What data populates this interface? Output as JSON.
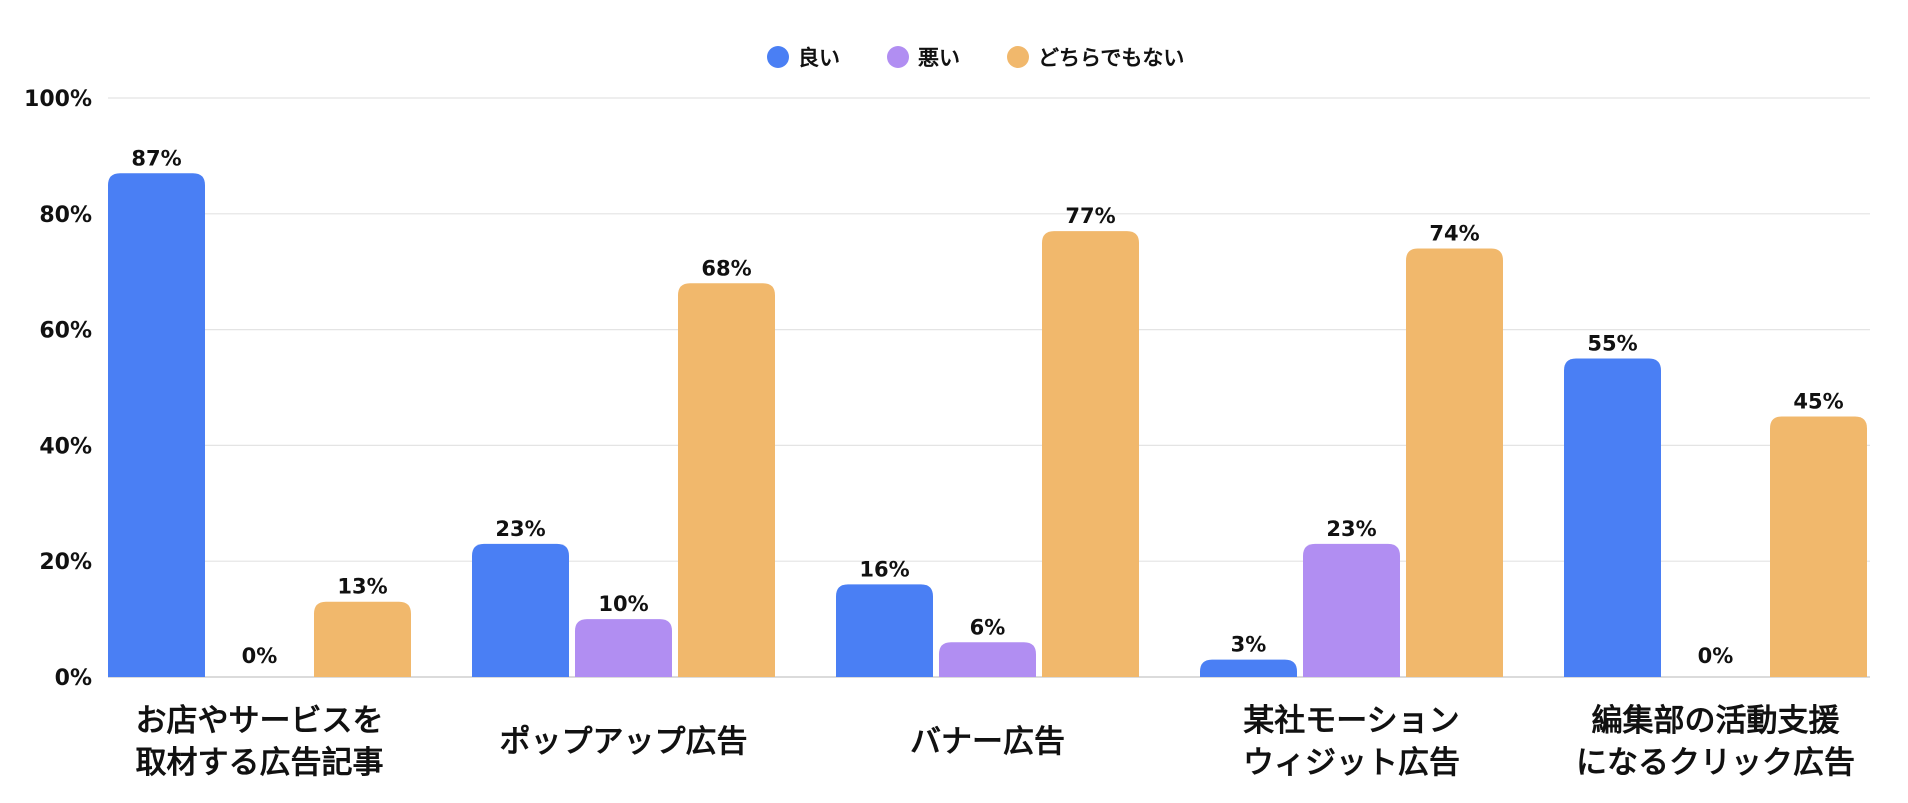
{
  "chart_data": {
    "type": "bar",
    "title": "",
    "xlabel": "",
    "ylabel": "",
    "ylim": [
      0,
      100
    ],
    "yticks": [
      "0%",
      "20%",
      "40%",
      "60%",
      "80%",
      "100%"
    ],
    "ytick_values": [
      0,
      20,
      40,
      60,
      80,
      100
    ],
    "grid": true,
    "legend_position": "top-center",
    "categories": [
      [
        "お店やサービスを",
        "取材する広告記事"
      ],
      [
        "ポップアップ広告"
      ],
      [
        "バナー広告"
      ],
      [
        "某社モーション",
        "ウィジット広告"
      ],
      [
        "編集部の活動支援",
        "になるクリック広告"
      ]
    ],
    "series": [
      {
        "name": "良い",
        "color": "#4a7ff4",
        "values": [
          87,
          23,
          16,
          3,
          55
        ],
        "labels": [
          "87%",
          "23%",
          "16%",
          "3%",
          "55%"
        ]
      },
      {
        "name": "悪い",
        "color": "#b18ef2",
        "values": [
          0,
          10,
          6,
          23,
          0
        ],
        "labels": [
          "0%",
          "10%",
          "6%",
          "23%",
          "0%"
        ]
      },
      {
        "name": "どちらでもない",
        "color": "#f1b86c",
        "values": [
          13,
          68,
          77,
          74,
          45
        ],
        "labels": [
          "13%",
          "68%",
          "77%",
          "74%",
          "45%"
        ]
      }
    ]
  }
}
